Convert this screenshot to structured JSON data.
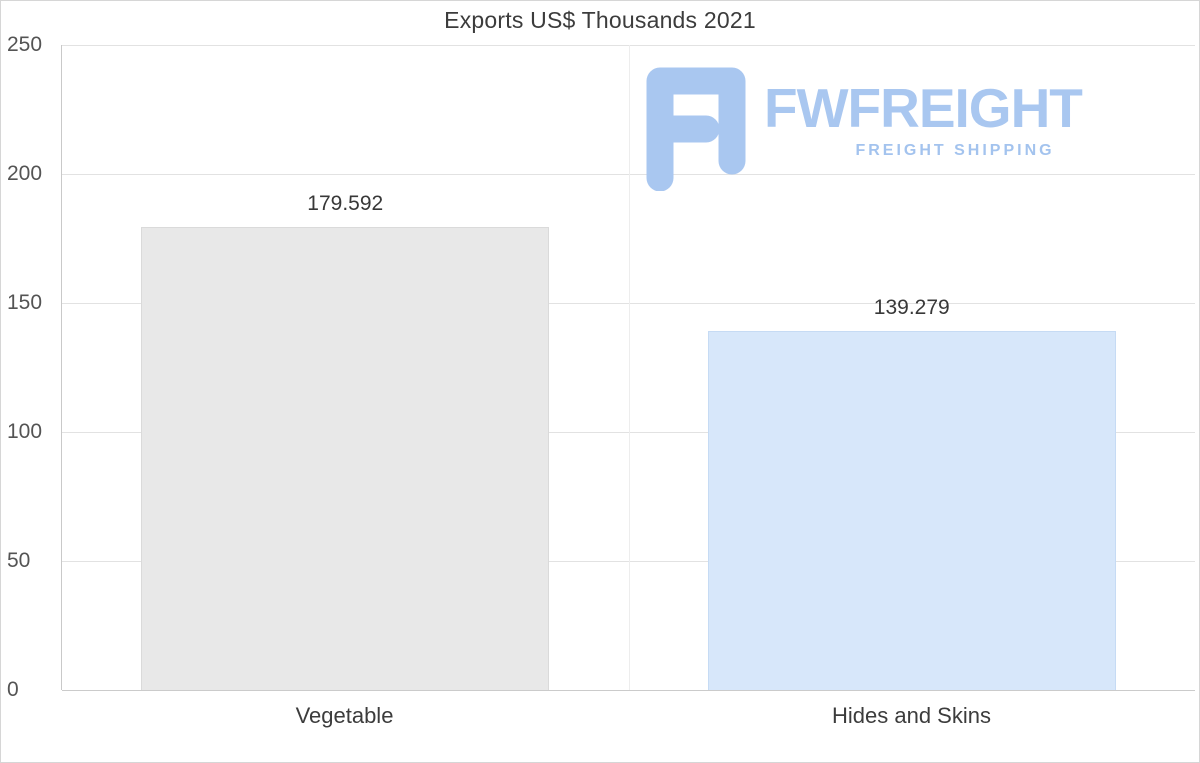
{
  "chart_data": {
    "type": "bar",
    "title": "Exports US$ Thousands 2021",
    "categories": [
      "Vegetable",
      "Hides and Skins"
    ],
    "values": [
      179.592,
      139.279
    ],
    "value_labels": [
      "179.592",
      "139.279"
    ],
    "xlabel": "",
    "ylabel": "",
    "ylim": [
      0,
      250
    ],
    "yticks": [
      0,
      50,
      100,
      150,
      200,
      250
    ],
    "grid": true,
    "legend": "none",
    "bar_colors": [
      "#e8e8e8",
      "#d7e7fa"
    ],
    "bar_borders": [
      "#dadada",
      "#c6dbf4"
    ]
  },
  "watermark": {
    "name": "FWFREIGHT",
    "tagline": "FREIGHT SHIPPING",
    "color": "#a9c7f0"
  }
}
